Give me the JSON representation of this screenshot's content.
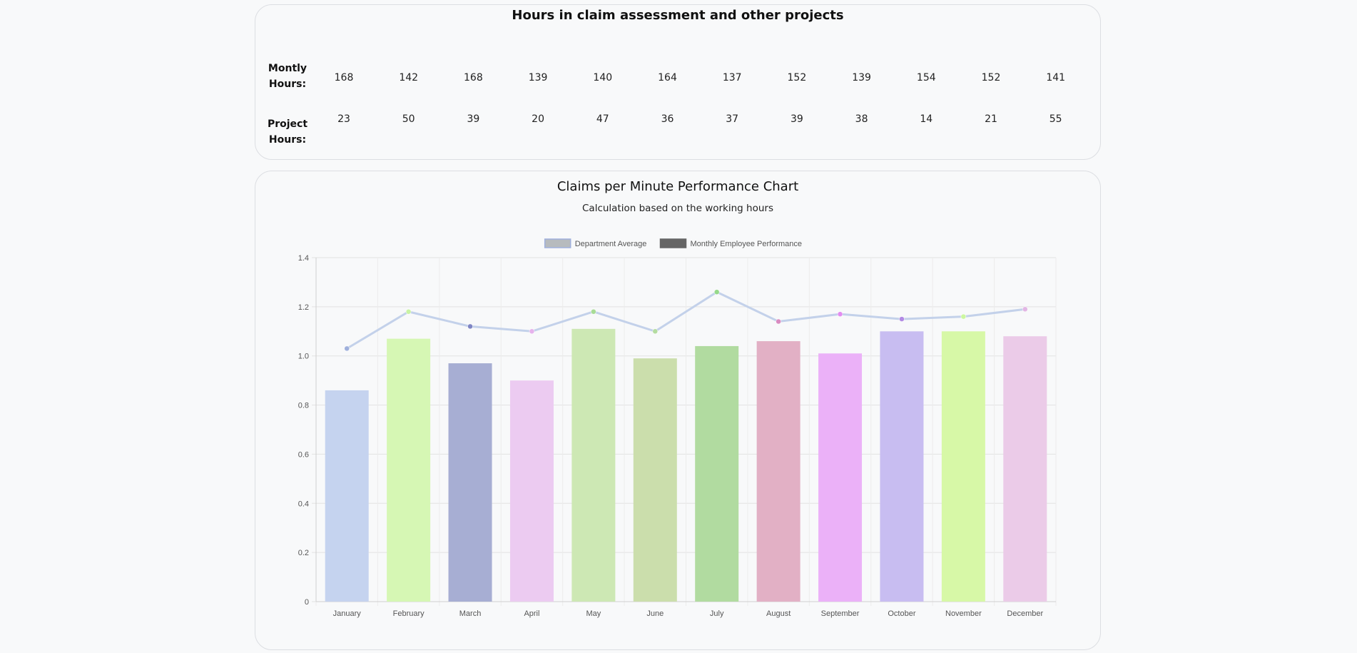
{
  "hours_panel": {
    "title": "Hours in claim assessment and other projects",
    "monthly_label_1": "Montly",
    "monthly_label_2": "Hours:",
    "project_label_1": "Project",
    "project_label_2": "Hours:",
    "monthly_hours": [
      168,
      142,
      168,
      139,
      140,
      164,
      137,
      152,
      139,
      154,
      152,
      141
    ],
    "project_hours": [
      23,
      50,
      39,
      20,
      47,
      36,
      37,
      39,
      38,
      14,
      21,
      55
    ]
  },
  "chart_data": {
    "type": "bar",
    "title": "Claims per Minute Performance Chart",
    "subtitle": "Calculation based on the working hours",
    "categories": [
      "January",
      "February",
      "March",
      "April",
      "May",
      "June",
      "July",
      "August",
      "September",
      "October",
      "November",
      "December"
    ],
    "series": [
      {
        "name": "Department Average",
        "type": "line",
        "values": [
          1.03,
          1.18,
          1.12,
          1.1,
          1.18,
          1.1,
          1.26,
          1.14,
          1.17,
          1.15,
          1.16,
          1.19
        ],
        "line_color": "#c3d1ea",
        "point_colors": [
          "#9fb0dc",
          "#c9f3a4",
          "#7f86c4",
          "#e6b3ec",
          "#a8dc96",
          "#b4dca0",
          "#96d98a",
          "#d98bc0",
          "#e28df0",
          "#b28ae4",
          "#ccf7a0",
          "#e2b6e4"
        ]
      },
      {
        "name": "Monthly Employee Performance",
        "type": "bar",
        "values": [
          0.86,
          1.07,
          0.97,
          0.9,
          1.11,
          0.99,
          1.04,
          1.06,
          1.01,
          1.1,
          1.1,
          1.08
        ],
        "colors": [
          "#c5d3ef",
          "#d6f7b4",
          "#a7aed3",
          "#eccbf1",
          "#cde8b4",
          "#cbdeac",
          "#b1dba0",
          "#e2b0c5",
          "#ebb1f8",
          "#c8bdf1",
          "#d7f8a7",
          "#ebcbe8"
        ]
      }
    ],
    "legend": {
      "position": "top",
      "items": [
        {
          "label": "Department Average",
          "swatch": "#b7bbbe",
          "border": "#9fb0dc"
        },
        {
          "label": "Monthly Employee Performance",
          "swatch": "#666666",
          "border": "#666666"
        }
      ]
    },
    "ylim": [
      0,
      1.4
    ],
    "yticks": [
      0,
      0.2,
      0.4,
      0.6,
      0.8,
      1.0,
      1.2,
      1.4
    ],
    "ytick_labels": [
      "0",
      "0.2",
      "0.4",
      "0.6",
      "0.8",
      "1.0",
      "1.2",
      "1.4"
    ],
    "grid": true,
    "xlabel": "",
    "ylabel": ""
  }
}
